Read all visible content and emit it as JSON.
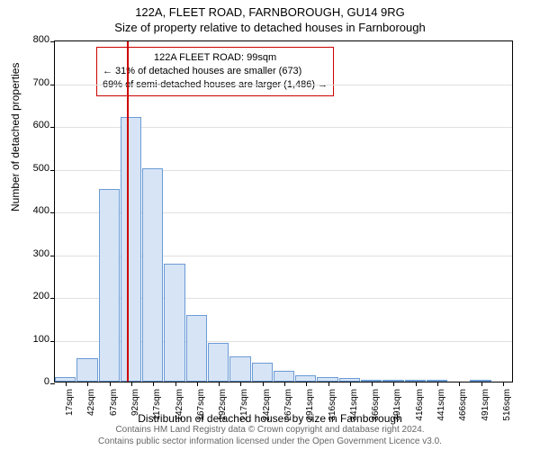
{
  "title": "122A, FLEET ROAD, FARNBOROUGH, GU14 9RG",
  "subtitle": "Size of property relative to detached houses in Farnborough",
  "chart": {
    "type": "histogram",
    "xlabel": "Distribution of detached houses by size in Farnborough",
    "ylabel": "Number of detached properties",
    "ylim": [
      0,
      800
    ],
    "ytick_step": 100,
    "x_categories": [
      "17sqm",
      "42sqm",
      "67sqm",
      "92sqm",
      "117sqm",
      "142sqm",
      "167sqm",
      "192sqm",
      "217sqm",
      "242sqm",
      "267sqm",
      "291sqm",
      "316sqm",
      "341sqm",
      "366sqm",
      "391sqm",
      "416sqm",
      "441sqm",
      "466sqm",
      "491sqm",
      "516sqm"
    ],
    "values": [
      10,
      55,
      450,
      620,
      500,
      275,
      155,
      90,
      60,
      45,
      25,
      15,
      10,
      8,
      3,
      5,
      3,
      2,
      0,
      2,
      0
    ],
    "bar_fill": "#d6e4f5",
    "bar_border": "#6b9bd6",
    "grid_color": "#e0e0e0",
    "ref_line_x_index": 3.3,
    "ref_line_color": "#cc0000",
    "annotation": {
      "line1": "122A FLEET ROAD: 99sqm",
      "line2": "← 31% of detached houses are smaller (673)",
      "line3": "69% of semi-detached houses are larger (1,486) →"
    }
  },
  "footer": {
    "line1": "Contains HM Land Registry data © Crown copyright and database right 2024.",
    "line2": "Contains public sector information licensed under the Open Government Licence v3.0."
  }
}
